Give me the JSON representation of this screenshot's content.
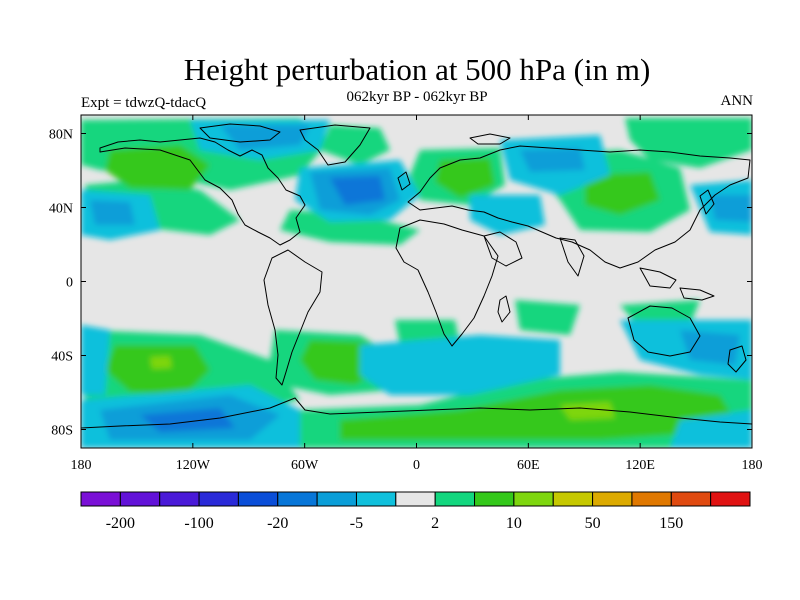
{
  "header": {
    "title": "Height perturbation at 500 hPa (in m)",
    "subtitle": "062kyr BP - 062kyr BP",
    "left_label": "Expt = tdwzQ-tdacQ",
    "right_label": "ANN"
  },
  "map": {
    "projection": "cylindrical-equidistant",
    "lon_range": [
      -180,
      180
    ],
    "lat_range": [
      -90,
      90
    ],
    "lat_ticks": [
      {
        "lat": 80,
        "label": "80N"
      },
      {
        "lat": 40,
        "label": "40N"
      },
      {
        "lat": 0,
        "label": "0"
      },
      {
        "lat": -40,
        "label": "40S"
      },
      {
        "lat": -80,
        "label": "80S"
      }
    ],
    "lon_ticks": [
      {
        "lon": -180,
        "label": "180"
      },
      {
        "lon": -120,
        "label": "120W"
      },
      {
        "lon": -60,
        "label": "60W"
      },
      {
        "lon": 0,
        "label": "0"
      },
      {
        "lon": 60,
        "label": "60E"
      },
      {
        "lon": 120,
        "label": "120E"
      },
      {
        "lon": 180,
        "label": "180"
      }
    ],
    "background_color": "#e6e6e6",
    "coastline_color": "#000000"
  },
  "colorbar": {
    "colors": [
      "#7a10d6",
      "#6212d8",
      "#4a1ad8",
      "#2a2ad8",
      "#0a4ed8",
      "#0876d8",
      "#0a9ed8",
      "#10c0dc",
      "#e6e6e6",
      "#12d67e",
      "#34c81a",
      "#7ed60e",
      "#c6c800",
      "#dcaa00",
      "#e07800",
      "#e04a10",
      "#e01212"
    ],
    "labels": [
      {
        "after_box": 1,
        "text": "-200"
      },
      {
        "after_box": 3,
        "text": "-100"
      },
      {
        "after_box": 5,
        "text": "-20"
      },
      {
        "after_box": 7,
        "text": "-5"
      },
      {
        "after_box": 9,
        "text": "2"
      },
      {
        "after_box": 11,
        "text": "10"
      },
      {
        "after_box": 13,
        "text": "50"
      },
      {
        "after_box": 15,
        "text": "150"
      }
    ]
  }
}
